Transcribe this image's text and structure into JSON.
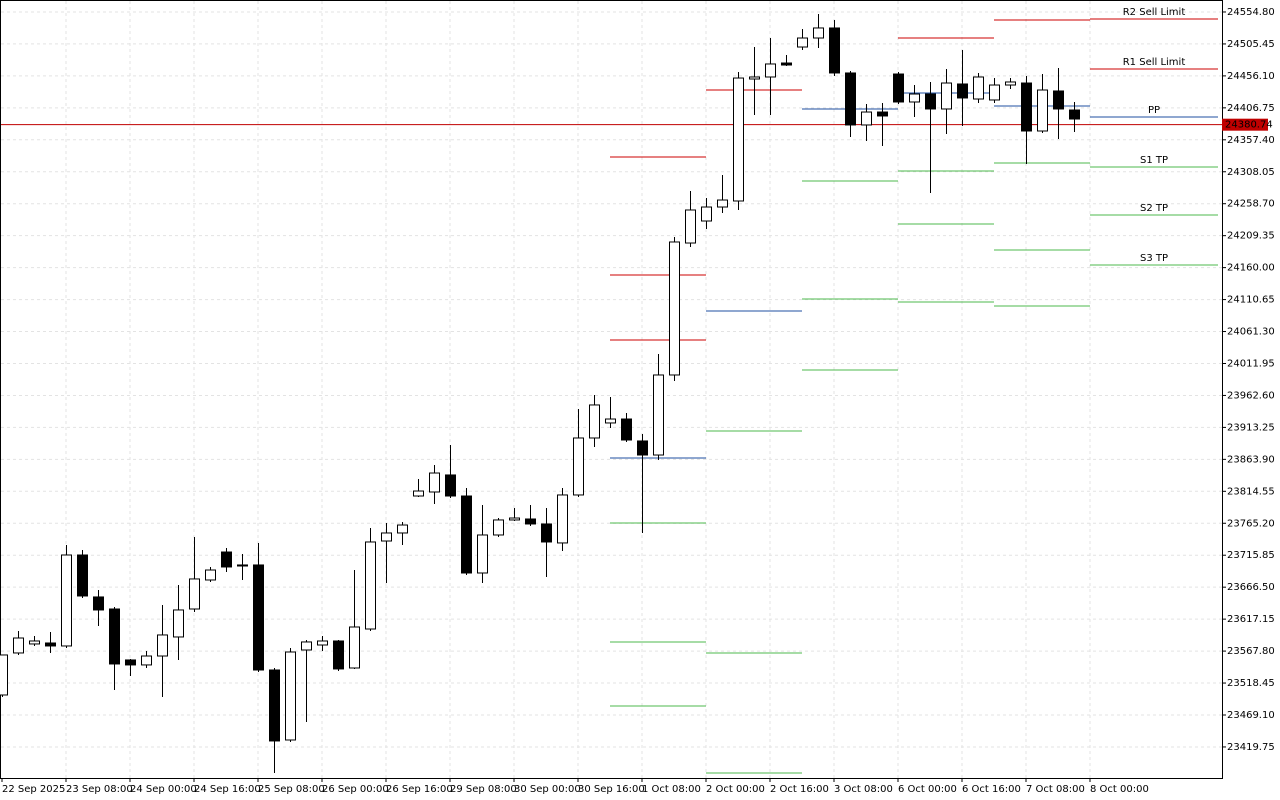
{
  "chart_data": {
    "type": "candlestick",
    "categories": [
      "22 Sep 2025",
      null,
      null,
      null,
      "23 Sep 08:00",
      null,
      null,
      null,
      "24 Sep 00:00",
      null,
      null,
      null,
      "24 Sep 16:00",
      null,
      null,
      null,
      "25 Sep 08:00",
      null,
      null,
      null,
      "26 Sep 00:00",
      null,
      null,
      null,
      "26 Sep 16:00",
      null,
      null,
      null,
      "29 Sep 08:00",
      null,
      null,
      null,
      "30 Sep 00:00",
      null,
      null,
      null,
      "30 Sep 16:00",
      null,
      null,
      null,
      "1 Oct 08:00",
      null,
      null,
      null,
      "2 Oct 00:00",
      null,
      null,
      null,
      "2 Oct 16:00",
      null,
      null,
      null,
      "3 Oct 08:00",
      null,
      null,
      null,
      "6 Oct 00:00",
      null,
      null,
      null,
      "6 Oct 16:00",
      null,
      null,
      null,
      "7 Oct 08:00",
      null,
      null,
      null,
      "8 Oct 00:00"
    ],
    "open": [
      23500.0,
      23564.9,
      23578.8,
      23580.3,
      23575.7,
      23716.2,
      23651.4,
      23632.8,
      23554.1,
      23546.4,
      23560.2,
      23589.6,
      23632.8,
      23677.6,
      23720.8,
      23700.8,
      23700.8,
      23538.6,
      23430.5,
      23569.5,
      23577.2,
      23583.4,
      23541.7,
      23601.9,
      23737.8,
      23750.2,
      23807.3,
      23813.5,
      23839.8,
      23807.3,
      23688.4,
      23747.1,
      23770.3,
      23771.8,
      23764.1,
      23734.8,
      23808.9,
      23896.9,
      23920.1,
      23926.2,
      23892.3,
      23870.6,
      23994.2,
      24198.0,
      24232.0,
      24253.6,
      24262.9,
      24451.3,
      24454.4,
      24476.0,
      24500.7,
      24514.6,
      24530.1,
      24460.6,
      24380.3,
      24400.3,
      24459.0,
      24415.8,
      24428.1,
      24405.0,
      24443.6,
      24420.4,
      24418.9,
      24442.0,
      24445.1,
      24371.0,
      24432.8,
      24403.4,
      null
    ],
    "high": [
      23561.8,
      23598.8,
      23591.1,
      23597.3,
      23731.7,
      23723.9,
      23662.2,
      23635.9,
      23555.6,
      23568.0,
      23639.0,
      23669.9,
      23744.0,
      23697.7,
      23727.0,
      23717.8,
      23734.8,
      23541.7,
      23572.6,
      23584.9,
      23591.1,
      23584.9,
      23693.0,
      23757.9,
      23765.6,
      23767.2,
      23833.6,
      23855.2,
      23886.1,
      23819.7,
      23793.4,
      23773.3,
      23788.8,
      23793.4,
      23788.8,
      23819.7,
      23941.7,
      23963.3,
      23960.2,
      23935.5,
      23903.1,
      24026.6,
      24207.3,
      24278.3,
      24267.5,
      24303.0,
      24462.1,
      24500.7,
      24514.6,
      24488.4,
      24528.5,
      24551.7,
      24542.4,
      24463.7,
      24412.7,
      24414.2,
      24462.1,
      24442.0,
      24446.7,
      24466.7,
      24496.1,
      24460.6,
      24452.8,
      24452.8,
      24455.9,
      24459.0,
      24468.3,
      24415.8,
      null
    ],
    "low": [
      23496.9,
      23561.8,
      23575.7,
      23564.9,
      23572.6,
      23649.8,
      23606.6,
      23507.7,
      23529.3,
      23541.7,
      23496.9,
      23554.1,
      23628.2,
      23674.5,
      23690.0,
      23677.6,
      23535.5,
      23379.6,
      23427.4,
      23458.3,
      23568.0,
      23537.1,
      23540.2,
      23598.8,
      23673.0,
      23731.7,
      23805.8,
      23795.0,
      23804.2,
      23685.3,
      23673.0,
      23744.0,
      23768.7,
      23761.0,
      23682.2,
      23722.4,
      23805.8,
      23883.0,
      23912.3,
      23890.7,
      23750.2,
      23862.9,
      23984.9,
      24191.9,
      24219.7,
      24244.4,
      24249.0,
      24395.7,
      24395.7,
      24471.4,
      24496.1,
      24499.2,
      24455.9,
      24361.7,
      24355.6,
      24347.8,
      24412.7,
      24392.6,
      24275.2,
      24366.4,
      24378.7,
      24414.2,
      24414.2,
      24435.9,
      24320.0,
      24367.9,
      24358.6,
      24369.5,
      null
    ],
    "close": [
      23561.8,
      23588.0,
      23583.4,
      23575.7,
      23716.2,
      23652.9,
      23631.3,
      23547.9,
      23546.4,
      23560.2,
      23592.7,
      23631.3,
      23679.2,
      23693.0,
      23697.7,
      23699.2,
      23538.6,
      23429.0,
      23566.4,
      23581.9,
      23583.4,
      23540.2,
      23605.0,
      23736.3,
      23750.2,
      23762.5,
      23815.0,
      23842.8,
      23807.3,
      23688.4,
      23747.1,
      23770.3,
      23773.3,
      23764.1,
      23736.3,
      23808.9,
      23896.9,
      23947.9,
      23926.2,
      23893.8,
      23870.6,
      23994.2,
      24199.6,
      24249.0,
      24253.6,
      24264.4,
      24452.8,
      24454.4,
      24474.5,
      24472.9,
      24514.6,
      24530.1,
      24460.6,
      24380.3,
      24400.3,
      24394.2,
      24415.8,
      24428.1,
      24405.0,
      24445.1,
      24422.0,
      24454.4,
      24442.0,
      24446.7,
      24371.0,
      24434.3,
      24405.0,
      24389.5,
      null
    ],
    "up_color": "#ffffff",
    "down_color": "#000000",
    "xlim": [
      -0.125,
      76.25
    ],
    "ylim": [
      23371.8,
      24573.3
    ],
    "yticks": [
      {
        "value": 24554.8,
        "label": "24554.80"
      },
      {
        "value": 24505.45,
        "label": "24505.45"
      },
      {
        "value": 24456.1,
        "label": "24456.10"
      },
      {
        "value": 24406.75,
        "label": "24406.75"
      },
      {
        "value": 24357.4,
        "label": "24357.40"
      },
      {
        "value": 24308.05,
        "label": "24308.05"
      },
      {
        "value": 24258.7,
        "label": "24258.70"
      },
      {
        "value": 24209.35,
        "label": "24209.35"
      },
      {
        "value": 24160,
        "label": "24160.00"
      },
      {
        "value": 24110.65,
        "label": "24110.65"
      },
      {
        "value": 24061.3,
        "label": "24061.30"
      },
      {
        "value": 24011.95,
        "label": "24011.95"
      },
      {
        "value": 23962.6,
        "label": "23962.60"
      },
      {
        "value": 23913.25,
        "label": "23913.25"
      },
      {
        "value": 23863.9,
        "label": "23863.90"
      },
      {
        "value": 23814.55,
        "label": "23814.55"
      },
      {
        "value": 23765.2,
        "label": "23765.20"
      },
      {
        "value": 23715.85,
        "label": "23715.85"
      },
      {
        "value": 23666.5,
        "label": "23666.50"
      },
      {
        "value": 23617.15,
        "label": "23617.15"
      },
      {
        "value": 23567.8,
        "label": "23567.80"
      },
      {
        "value": 23518.45,
        "label": "23518.45"
      },
      {
        "value": 23469.1,
        "label": "23469.10"
      },
      {
        "value": 23419.75,
        "label": "23419.75"
      }
    ],
    "grid": true,
    "current_price": 24380.74,
    "current_price_color": "#c00000",
    "levels": [
      {
        "from": 38,
        "to": 44,
        "value": 24330.8,
        "color": "#cc0000"
      },
      {
        "from": 38,
        "to": 44,
        "value": 24148.6,
        "color": "#cc0000"
      },
      {
        "from": 38,
        "to": 44,
        "value": 24048.2,
        "color": "#cc0000"
      },
      {
        "from": 38,
        "to": 44,
        "value": 23866.0,
        "color": "#1f4fa0"
      },
      {
        "from": 38,
        "to": 44,
        "value": 23765.6,
        "color": "#4db84d"
      },
      {
        "from": 38,
        "to": 44,
        "value": 23581.9,
        "color": "#4db84d"
      },
      {
        "from": 38,
        "to": 44,
        "value": 23483.0,
        "color": "#4db84d"
      },
      {
        "from": 44,
        "to": 50,
        "value": 24434.3,
        "color": "#cc0000"
      },
      {
        "from": 44,
        "to": 50,
        "value": 24093.0,
        "color": "#1f4fa0"
      },
      {
        "from": 44,
        "to": 50,
        "value": 23907.7,
        "color": "#4db84d"
      },
      {
        "from": 44,
        "to": 50,
        "value": 23564.9,
        "color": "#4db84d"
      },
      {
        "from": 44,
        "to": 50,
        "value": 23379.6,
        "color": "#4db84d"
      },
      {
        "from": 50,
        "to": 56,
        "value": 24405.0,
        "color": "#1f4fa0"
      },
      {
        "from": 50,
        "to": 56,
        "value": 24293.8,
        "color": "#4db84d"
      },
      {
        "from": 50,
        "to": 56,
        "value": 24111.5,
        "color": "#4db84d"
      },
      {
        "from": 50,
        "to": 56,
        "value": 24001.9,
        "color": "#4db84d"
      },
      {
        "from": 56,
        "to": 62,
        "value": 24514.6,
        "color": "#cc0000"
      },
      {
        "from": 56,
        "to": 62,
        "value": 24429.7,
        "color": "#1f4fa0"
      },
      {
        "from": 56,
        "to": 62,
        "value": 24309.2,
        "color": "#4db84d"
      },
      {
        "from": 56,
        "to": 62,
        "value": 24227.4,
        "color": "#4db84d"
      },
      {
        "from": 56,
        "to": 62,
        "value": 24106.9,
        "color": "#4db84d"
      },
      {
        "from": 62,
        "to": 68,
        "value": 24542.4,
        "color": "#cc0000"
      },
      {
        "from": 62,
        "to": 68,
        "value": 24409.6,
        "color": "#1f4fa0"
      },
      {
        "from": 62,
        "to": 68,
        "value": 24321.6,
        "color": "#4db84d"
      },
      {
        "from": 62,
        "to": 68,
        "value": 24187.2,
        "color": "#4db84d"
      },
      {
        "from": 62,
        "to": 68,
        "value": 24100.7,
        "color": "#4db84d"
      },
      {
        "from": 68,
        "to": 76,
        "value": 24544.0,
        "color": "#cc0000",
        "label": "R2 Sell Limit"
      },
      {
        "from": 68,
        "to": 76,
        "value": 24466.7,
        "color": "#cc0000",
        "label": "R1 Sell Limit"
      },
      {
        "from": 68,
        "to": 76,
        "value": 24392.6,
        "color": "#1f4fa0",
        "label": "PP"
      },
      {
        "from": 68,
        "to": 76,
        "value": 24315.4,
        "color": "#4db84d",
        "label": "S1 TP"
      },
      {
        "from": 68,
        "to": 76,
        "value": 24241.3,
        "color": "#4db84d",
        "label": "S2 TP"
      },
      {
        "from": 68,
        "to": 76,
        "value": 24164.1,
        "color": "#4db84d",
        "label": "S3 TP"
      }
    ]
  }
}
